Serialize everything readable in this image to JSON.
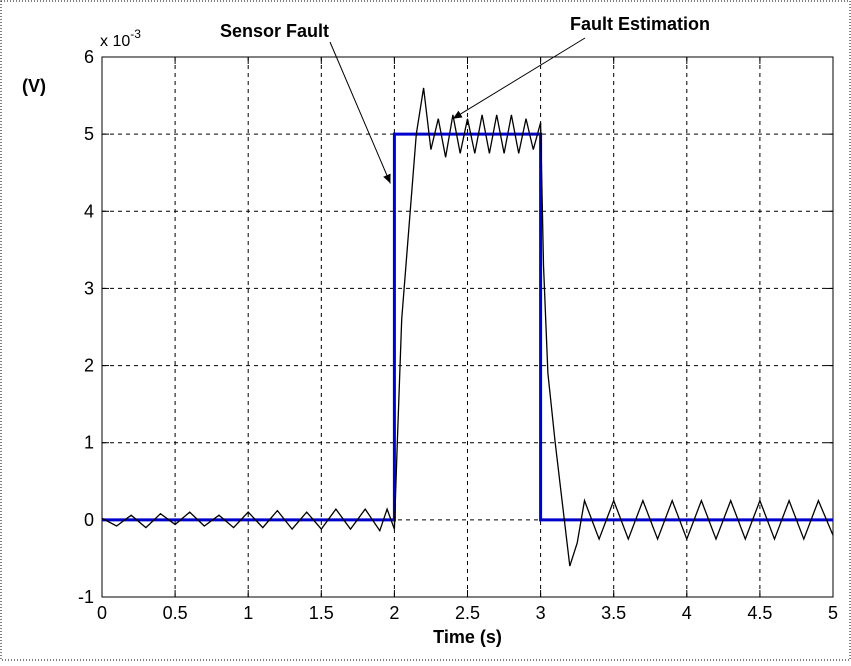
{
  "chart_data": {
    "type": "line",
    "title": "",
    "xlabel": "Time (s)",
    "ylabel": "(V)",
    "y_multiplier": {
      "base": "x 10",
      "exponent": "-3"
    },
    "xlim": [
      0,
      5
    ],
    "ylim": [
      -1,
      6
    ],
    "x_ticks": [
      0,
      0.5,
      1,
      1.5,
      2,
      2.5,
      3,
      3.5,
      4,
      4.5,
      5
    ],
    "x_tick_labels": [
      "0",
      "0.5",
      "1",
      "1.5",
      "2",
      "2.5",
      "3",
      "3.5",
      "4",
      "4.5",
      "5"
    ],
    "y_ticks": [
      -1,
      0,
      1,
      2,
      3,
      4,
      5,
      6
    ],
    "y_tick_labels": [
      "-1",
      "0",
      "1",
      "2",
      "3",
      "4",
      "5",
      "6"
    ],
    "grid": true,
    "series": [
      {
        "color": "#0000cc",
        "x": [
          0,
          2,
          2,
          3,
          3,
          5
        ],
        "y": [
          0,
          0,
          5,
          5,
          0,
          0
        ]
      },
      {
        "color": "#000000",
        "x": [
          0,
          0.1,
          0.2,
          0.3,
          0.4,
          0.5,
          0.6,
          0.7,
          0.8,
          0.9,
          1.0,
          1.1,
          1.2,
          1.3,
          1.4,
          1.5,
          1.6,
          1.7,
          1.8,
          1.9,
          1.95,
          2.0,
          2.02,
          2.05,
          2.1,
          2.15,
          2.2,
          2.25,
          2.3,
          2.35,
          2.4,
          2.45,
          2.5,
          2.55,
          2.6,
          2.65,
          2.7,
          2.75,
          2.8,
          2.85,
          2.9,
          2.95,
          3.0,
          3.02,
          3.05,
          3.1,
          3.15,
          3.2,
          3.25,
          3.3,
          3.4,
          3.5,
          3.6,
          3.7,
          3.8,
          3.9,
          4.0,
          4.1,
          4.2,
          4.3,
          4.4,
          4.5,
          4.6,
          4.7,
          4.8,
          4.9,
          5.0
        ],
        "y": [
          0.02,
          -0.08,
          0.06,
          -0.1,
          0.08,
          -0.06,
          0.1,
          -0.08,
          0.06,
          -0.1,
          0.1,
          -0.1,
          0.12,
          -0.12,
          0.1,
          -0.12,
          0.14,
          -0.12,
          0.14,
          -0.14,
          0.14,
          -0.12,
          1.0,
          2.6,
          3.8,
          5.0,
          5.6,
          4.8,
          5.2,
          4.7,
          5.25,
          4.75,
          5.2,
          4.75,
          5.25,
          4.75,
          5.25,
          4.75,
          5.25,
          4.75,
          5.2,
          4.8,
          5.15,
          3.3,
          1.9,
          1.0,
          0.2,
          -0.6,
          -0.3,
          0.25,
          -0.25,
          0.25,
          -0.25,
          0.25,
          -0.25,
          0.25,
          -0.25,
          0.25,
          -0.25,
          0.25,
          -0.25,
          0.25,
          -0.25,
          0.25,
          -0.25,
          0.25,
          -0.2
        ]
      }
    ],
    "annotations": [
      {
        "text": "Sensor Fault",
        "arrow_to": [
          2.0,
          4.75
        ]
      },
      {
        "text": "Fault  Estimation",
        "arrow_to": [
          2.4,
          5.2
        ]
      }
    ]
  }
}
